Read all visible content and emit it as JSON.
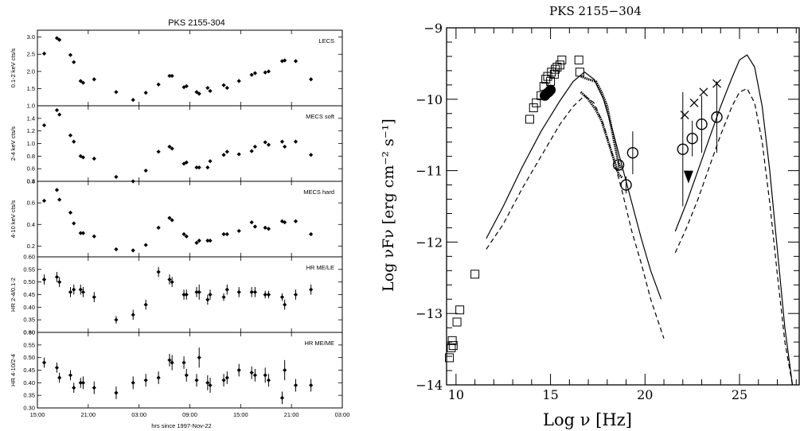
{
  "chart_data": [
    {
      "type": "scatter",
      "title": "PKS 2155-304",
      "xlabel": "hrs since 1997-Nov-22",
      "x_ticks": [
        "15:00",
        "21:00",
        "03:00",
        "09:00",
        "15:00",
        "21:00",
        "03:00"
      ],
      "x_tick_hours": [
        0,
        6,
        12,
        18,
        24,
        30,
        36
      ],
      "xlim": [
        0,
        36
      ],
      "panels": [
        {
          "label": "LECS",
          "ylabel": "0.1-2 keV cts/s",
          "ylim": [
            1.0,
            3.2
          ],
          "y_ticks": [
            1.0,
            1.5,
            2.0,
            2.5,
            3.0
          ],
          "y_tick_labels": [
            "1.0",
            "1.5",
            "2.0",
            "2.5",
            "3.0"
          ],
          "x": [
            0.8,
            2.3,
            2.6,
            3.9,
            4.3,
            5.1,
            5.4,
            6.7,
            9.3,
            11.3,
            12.8,
            14.3,
            15.6,
            15.9,
            17.3,
            17.6,
            18.8,
            19.1,
            20.1,
            20.4,
            22.0,
            22.4,
            23.8,
            25.3,
            25.7,
            26.9,
            27.3,
            28.9,
            29.2,
            30.5,
            32.3
          ],
          "values": [
            2.52,
            2.97,
            2.92,
            2.48,
            2.27,
            1.72,
            1.67,
            1.77,
            1.4,
            1.17,
            1.38,
            1.62,
            1.87,
            1.87,
            1.54,
            1.57,
            1.4,
            1.35,
            1.52,
            1.43,
            1.6,
            1.52,
            1.72,
            1.9,
            1.95,
            1.97,
            2.0,
            2.3,
            2.32,
            2.3,
            1.77
          ]
        },
        {
          "label": "MECS soft",
          "ylabel": "2-4 keV cts/s",
          "ylim": [
            0.4,
            1.6
          ],
          "y_ticks": [
            0.4,
            0.6,
            0.8,
            1.0,
            1.2,
            1.4
          ],
          "y_tick_labels": [
            "0.4",
            "0.6",
            "0.8",
            "1.0",
            "1.2",
            "1.4"
          ],
          "x": [
            0.8,
            2.3,
            2.6,
            3.9,
            4.3,
            5.1,
            5.4,
            6.7,
            9.3,
            11.3,
            12.8,
            14.3,
            15.6,
            15.9,
            17.3,
            17.6,
            18.8,
            19.1,
            20.1,
            20.4,
            22.0,
            22.4,
            23.8,
            25.3,
            25.7,
            26.9,
            27.3,
            28.9,
            29.2,
            30.5,
            32.3
          ],
          "values": [
            1.29,
            1.53,
            1.46,
            1.13,
            1.03,
            0.8,
            0.78,
            0.76,
            0.47,
            0.4,
            0.57,
            0.87,
            0.95,
            0.92,
            0.68,
            0.7,
            0.62,
            0.62,
            0.62,
            0.72,
            0.82,
            0.87,
            0.83,
            0.88,
            0.95,
            1.02,
            0.98,
            1.03,
            0.95,
            1.03,
            0.82
          ]
        },
        {
          "label": "MECS hard",
          "ylabel": "4-10 keV cts/s",
          "ylim": [
            0.1,
            0.8
          ],
          "y_ticks": [
            0.2,
            0.4,
            0.6,
            0.8
          ],
          "y_tick_labels": [
            "0.2",
            "0.4",
            "0.6",
            "0.8"
          ],
          "x": [
            0.8,
            2.3,
            2.6,
            3.9,
            4.3,
            5.1,
            5.4,
            6.7,
            9.3,
            11.3,
            12.8,
            14.3,
            15.6,
            15.9,
            17.3,
            17.6,
            18.8,
            19.1,
            20.1,
            20.4,
            22.0,
            22.4,
            23.8,
            25.3,
            25.7,
            26.9,
            27.3,
            28.9,
            29.2,
            30.5,
            32.3
          ],
          "values": [
            0.62,
            0.72,
            0.63,
            0.51,
            0.41,
            0.32,
            0.32,
            0.29,
            0.17,
            0.16,
            0.21,
            0.37,
            0.46,
            0.44,
            0.31,
            0.29,
            0.23,
            0.25,
            0.25,
            0.25,
            0.31,
            0.31,
            0.34,
            0.42,
            0.38,
            0.37,
            0.36,
            0.43,
            0.42,
            0.43,
            0.31
          ]
        },
        {
          "label": "HR ME/LE",
          "ylabel": "HR 2-4/0.1-2",
          "ylim": [
            0.3,
            0.6
          ],
          "y_ticks": [
            0.3,
            0.35,
            0.4,
            0.45,
            0.5,
            0.55,
            0.6
          ],
          "y_tick_labels": [
            "0.30",
            "0.35",
            "0.40",
            "0.45",
            "0.50",
            "0.55",
            "0.60"
          ],
          "x": [
            0.8,
            2.3,
            2.6,
            3.9,
            4.3,
            5.1,
            5.4,
            6.7,
            9.3,
            11.3,
            12.8,
            14.3,
            15.6,
            15.9,
            17.3,
            17.6,
            18.8,
            19.1,
            20.1,
            20.4,
            22.0,
            22.4,
            23.8,
            25.3,
            25.7,
            26.9,
            27.3,
            28.9,
            29.2,
            30.5,
            32.3
          ],
          "values": [
            0.51,
            0.52,
            0.5,
            0.46,
            0.47,
            0.47,
            0.46,
            0.44,
            0.35,
            0.37,
            0.41,
            0.54,
            0.51,
            0.5,
            0.45,
            0.45,
            0.46,
            0.46,
            0.43,
            0.45,
            0.44,
            0.47,
            0.46,
            0.46,
            0.46,
            0.45,
            0.45,
            0.44,
            0.41,
            0.45,
            0.47
          ],
          "err": [
            0.02,
            0.02,
            0.02,
            0.02,
            0.02,
            0.02,
            0.02,
            0.02,
            0.015,
            0.02,
            0.02,
            0.02,
            0.02,
            0.02,
            0.02,
            0.02,
            0.02,
            0.03,
            0.02,
            0.02,
            0.015,
            0.02,
            0.02,
            0.02,
            0.02,
            0.015,
            0.015,
            0.015,
            0.02,
            0.02,
            0.02
          ]
        },
        {
          "label": "HR ME/ME",
          "ylabel": "HR 4-10/2-4",
          "ylim": [
            0.3,
            0.6
          ],
          "y_ticks": [
            0.3,
            0.35,
            0.4,
            0.45,
            0.5,
            0.55,
            0.6
          ],
          "y_tick_labels": [
            "0.30",
            "0.35",
            "0.40",
            "0.45",
            "0.50",
            "0.55",
            "0.60"
          ],
          "x": [
            0.8,
            2.3,
            2.6,
            3.9,
            4.3,
            5.1,
            5.4,
            6.7,
            9.3,
            11.3,
            12.8,
            14.3,
            15.6,
            15.9,
            17.3,
            17.6,
            18.8,
            19.1,
            20.1,
            20.4,
            22.0,
            22.4,
            23.8,
            25.3,
            25.7,
            26.9,
            27.3,
            28.9,
            29.2,
            30.5,
            32.3
          ],
          "values": [
            0.48,
            0.46,
            0.42,
            0.43,
            0.38,
            0.4,
            0.4,
            0.38,
            0.36,
            0.4,
            0.41,
            0.42,
            0.49,
            0.48,
            0.48,
            0.43,
            0.41,
            0.5,
            0.4,
            0.39,
            0.41,
            0.42,
            0.45,
            0.44,
            0.43,
            0.43,
            0.41,
            0.34,
            0.45,
            0.39,
            0.39
          ],
          "err": [
            0.02,
            0.02,
            0.02,
            0.02,
            0.02,
            0.02,
            0.025,
            0.025,
            0.025,
            0.025,
            0.025,
            0.025,
            0.025,
            0.03,
            0.025,
            0.025,
            0.025,
            0.04,
            0.03,
            0.03,
            0.025,
            0.025,
            0.025,
            0.025,
            0.025,
            0.03,
            0.025,
            0.025,
            0.04,
            0.025,
            0.025
          ]
        }
      ]
    },
    {
      "type": "scatter",
      "title": "PKS 2155−304",
      "xlabel": "Log ν [Hz]",
      "ylabel": "Log νFν [erg cm⁻² s⁻¹]",
      "xlim": [
        9.5,
        28.2
      ],
      "ylim": [
        -14,
        -9
      ],
      "x_ticks": [
        10,
        15,
        20,
        25
      ],
      "x_tick_labels": [
        "10",
        "15",
        "20",
        "25"
      ],
      "y_ticks": [
        -14,
        -13,
        -12,
        -11,
        -10,
        -9
      ],
      "y_tick_labels": [
        "−14",
        "−13",
        "−12",
        "−11",
        "−10",
        "−9"
      ],
      "series": [
        {
          "marker": "square",
          "x": [
            9.65,
            9.75,
            9.8,
            9.85,
            10.2,
            10.05,
            11.0,
            13.9,
            14.1,
            14.25,
            14.5,
            14.65,
            14.75,
            14.85,
            15.0,
            15.05,
            15.2,
            15.25,
            15.35,
            15.5,
            15.6,
            16.5,
            16.55
          ],
          "y": [
            -13.62,
            -13.48,
            -13.38,
            -13.45,
            -12.95,
            -13.12,
            -12.45,
            -10.28,
            -10.12,
            -10.05,
            -9.95,
            -9.82,
            -9.72,
            -9.68,
            -9.75,
            -9.62,
            -9.65,
            -9.58,
            -9.55,
            -9.52,
            -9.45,
            -9.45,
            -9.62
          ]
        },
        {
          "marker": "circle",
          "x": [
            14.7,
            14.8,
            14.9,
            15.0,
            18.6,
            19.0,
            19.35,
            22.0,
            22.5,
            23.0,
            23.8
          ],
          "y": [
            -9.95,
            -9.92,
            -9.9,
            -9.87,
            -10.92,
            -11.2,
            -10.75,
            -10.7,
            -10.55,
            -10.35,
            -10.25
          ],
          "yerr": [
            0,
            0,
            0,
            0,
            0.08,
            0.12,
            0.3,
            0.8,
            0.25,
            0.4,
            0.5
          ]
        },
        {
          "marker": "cross",
          "x": [
            22.1,
            22.6,
            23.1,
            23.8
          ],
          "y": [
            -10.22,
            -10.05,
            -9.9,
            -9.78
          ]
        }
      ]
    }
  ]
}
